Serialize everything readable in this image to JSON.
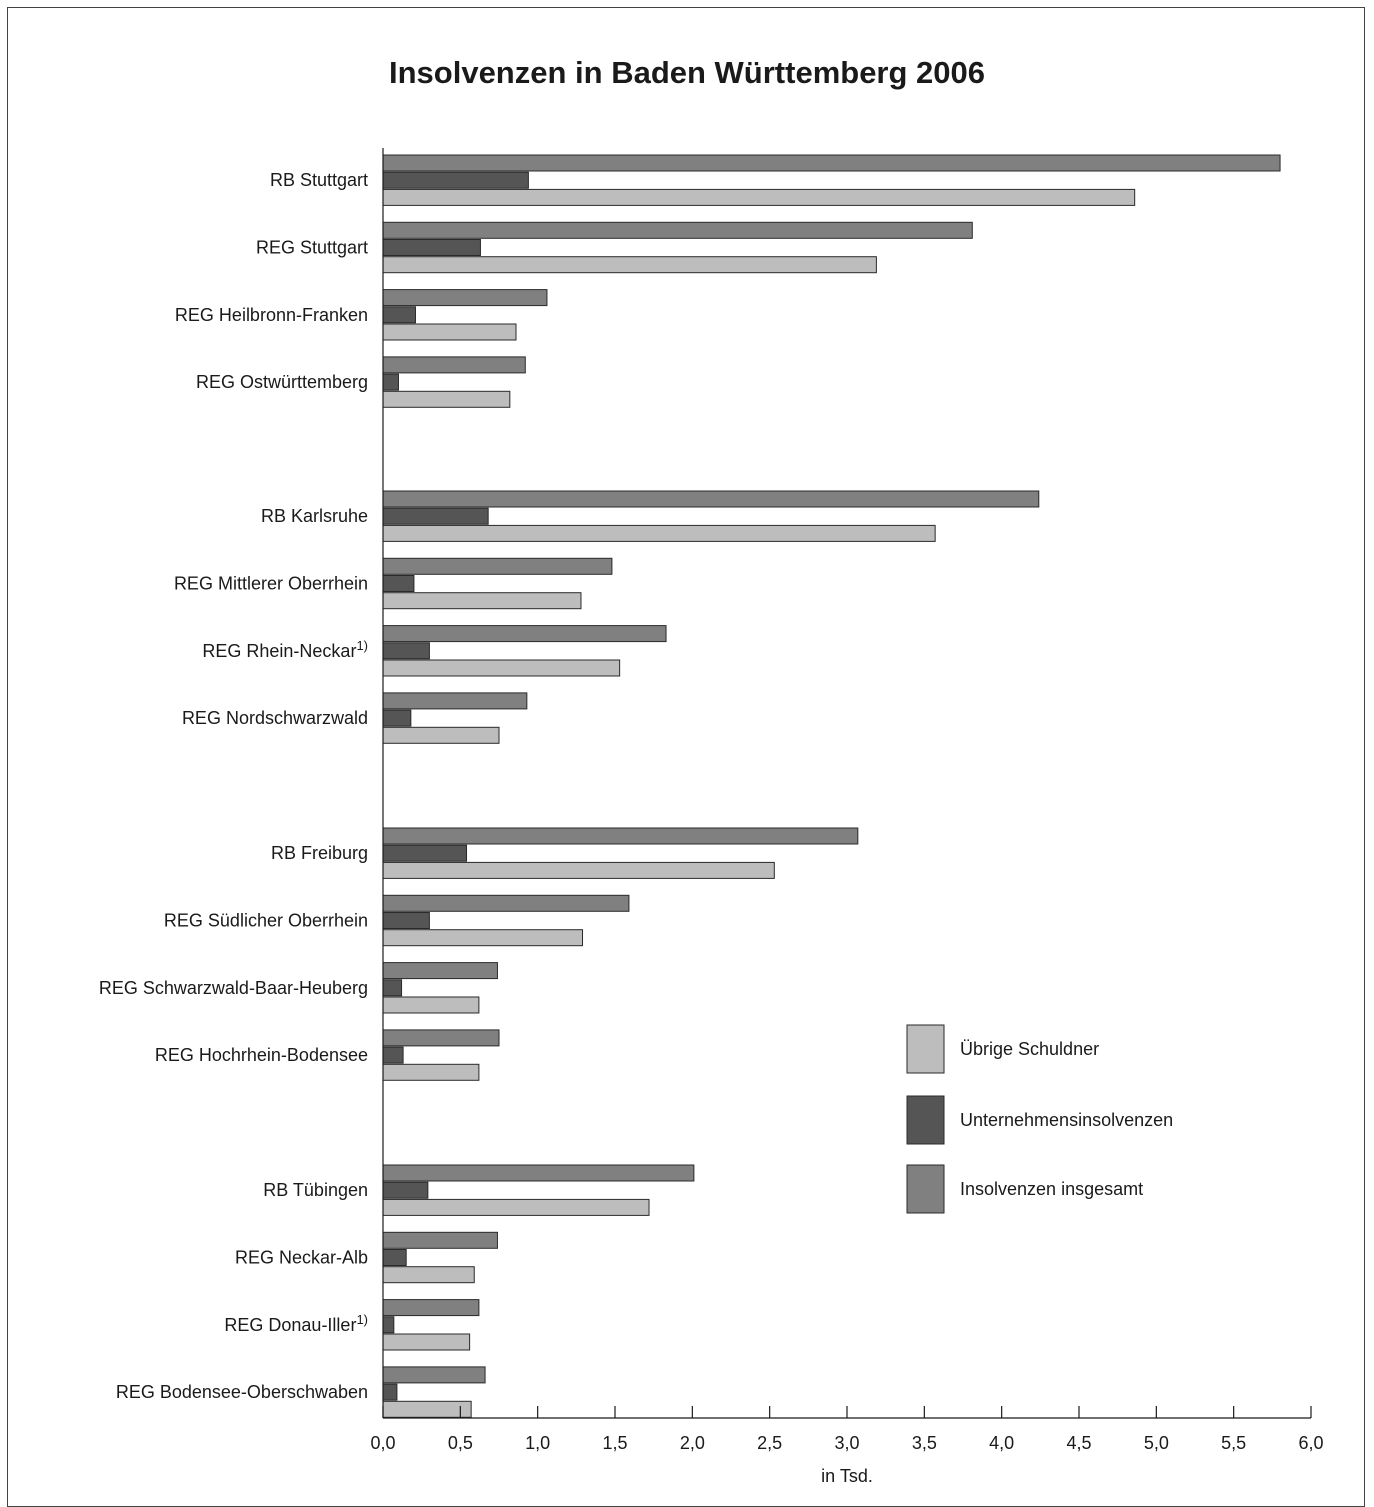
{
  "chart_data": {
    "type": "bar",
    "orientation": "horizontal",
    "title": "Insolvenzen in Baden Württemberg 2006",
    "xlabel": "in Tsd.",
    "ylabel": "",
    "xlim": [
      0,
      6
    ],
    "x_ticks": [
      "0,0",
      "0,5",
      "1,0",
      "1,5",
      "2,0",
      "2,5",
      "3,0",
      "3,5",
      "4,0",
      "4,5",
      "5,0",
      "5,5",
      "6,0"
    ],
    "legend_position": "right",
    "footnote_mark": "1)",
    "categories": [
      {
        "label": "RB Stuttgart",
        "footnote": ""
      },
      {
        "label": "REG Stuttgart",
        "footnote": ""
      },
      {
        "label": "REG Heilbronn-Franken",
        "footnote": ""
      },
      {
        "label": "REG Ostwürttemberg",
        "footnote": ""
      },
      {
        "label": "RB Karlsruhe",
        "footnote": ""
      },
      {
        "label": "REG Mittlerer Oberrhein",
        "footnote": ""
      },
      {
        "label": "REG Rhein-Neckar",
        "footnote": "1)"
      },
      {
        "label": "REG Nordschwarzwald",
        "footnote": ""
      },
      {
        "label": "RB Freiburg",
        "footnote": ""
      },
      {
        "label": "REG Südlicher Oberrhein",
        "footnote": ""
      },
      {
        "label": "REG Schwarzwald-Baar-Heuberg",
        "footnote": ""
      },
      {
        "label": "REG Hochrhein-Bodensee",
        "footnote": ""
      },
      {
        "label": "RB Tübingen",
        "footnote": ""
      },
      {
        "label": "REG Neckar-Alb",
        "footnote": ""
      },
      {
        "label": "REG Donau-Iller",
        "footnote": "1)"
      },
      {
        "label": "REG Bodensee-Oberschwaben",
        "footnote": ""
      }
    ],
    "groups": [
      [
        0,
        1,
        2,
        3
      ],
      [
        4,
        5,
        6,
        7
      ],
      [
        8,
        9,
        10,
        11
      ],
      [
        12,
        13,
        14,
        15
      ]
    ],
    "series": [
      {
        "name": "Insolvenzen insgesamt",
        "color": "#808080",
        "values": [
          5.8,
          3.81,
          1.06,
          0.92,
          4.24,
          1.48,
          1.83,
          0.93,
          3.07,
          1.59,
          0.74,
          0.75,
          2.01,
          0.74,
          0.62,
          0.66
        ]
      },
      {
        "name": "Unternehmensinsolvenzen",
        "color": "#555555",
        "values": [
          0.94,
          0.63,
          0.21,
          0.1,
          0.68,
          0.2,
          0.3,
          0.18,
          0.54,
          0.3,
          0.12,
          0.13,
          0.29,
          0.15,
          0.07,
          0.09
        ]
      },
      {
        "name": "Übrige Schuldner",
        "color": "#bdbdbd",
        "values": [
          4.86,
          3.19,
          0.86,
          0.82,
          3.57,
          1.28,
          1.53,
          0.75,
          2.53,
          1.29,
          0.62,
          0.62,
          1.72,
          0.59,
          0.56,
          0.57
        ]
      }
    ],
    "legend": [
      {
        "name": "Übrige Schuldner",
        "color": "#bdbdbd"
      },
      {
        "name": "Unternehmensinsolvenzen",
        "color": "#555555"
      },
      {
        "name": "Insolvenzen insgesamt",
        "color": "#808080"
      }
    ]
  }
}
